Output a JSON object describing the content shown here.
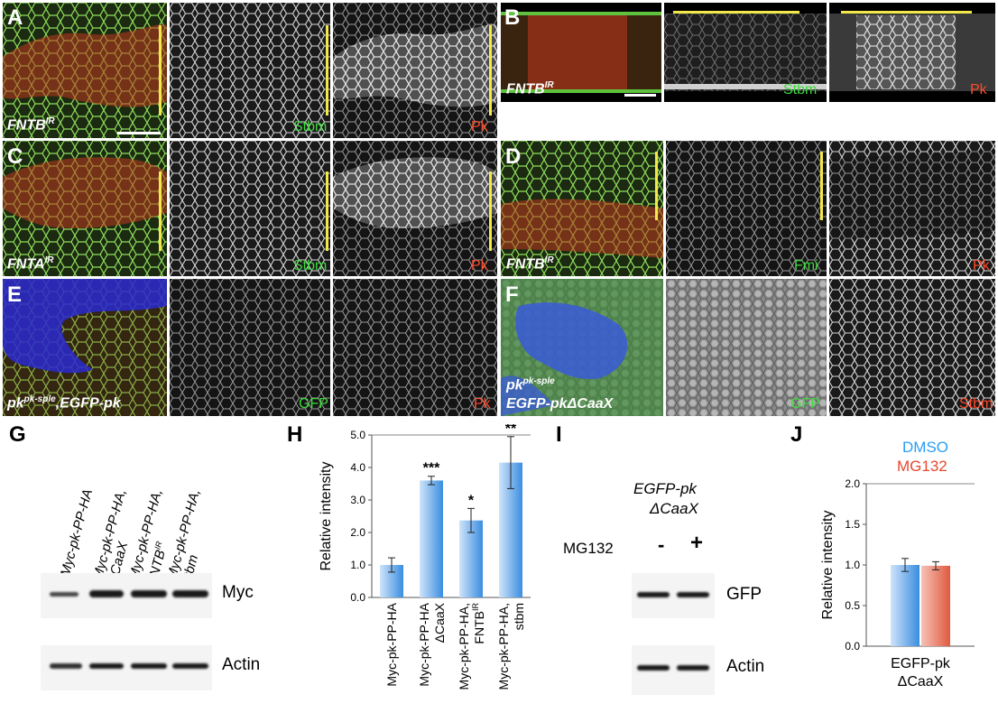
{
  "colors": {
    "green_channel": "#3ddc3d",
    "red_channel": "#ff4a2a",
    "scale_bar": "#f2e84a",
    "dmso": "#2a9df4",
    "mg132": "#e8472d"
  },
  "panels": {
    "A": {
      "label": "A",
      "genotype": "FNTB",
      "sup": "IR",
      "ch1": "Stbm",
      "ch2": "Pk"
    },
    "B": {
      "label": "B",
      "genotype": "FNTB",
      "sup": "IR",
      "ch1": "Stbm",
      "ch2": "Pk"
    },
    "C": {
      "label": "C",
      "genotype": "FNTA",
      "sup": "IR",
      "ch1": "Stbm",
      "ch2": "Pk"
    },
    "D": {
      "label": "D",
      "genotype": "FNTB",
      "sup": "IR",
      "ch1": "Fmi",
      "ch2": "Pk"
    },
    "E": {
      "label": "E",
      "genotype_pre": "pk",
      "sup": "pk-sple",
      "genotype_post": ",EGFP-pk",
      "ch1": "GFP",
      "ch2": "Pk"
    },
    "F": {
      "label": "F",
      "genotype_pre": "pk",
      "sup": "pk-sple",
      "line2": "EGFP-pkΔCaaX",
      "ch1": "GFP",
      "ch2": "Stbm"
    },
    "G": {
      "label": "G",
      "lanes": [
        "Myc-pk-PP-HA",
        "Myc-pk-PP-HA,\nΔCaaX",
        "Myc-pk-PP-HA,\nFNTB",
        "Myc-pk-PP-HA,\nstbm"
      ],
      "lane3_sup": "IR",
      "blot1": "Myc",
      "blot2": "Actin"
    },
    "H": {
      "label": "H"
    },
    "I": {
      "label": "I",
      "title_line1": "EGFP-pk",
      "title_line2": "ΔCaaX",
      "treatment": "MG132",
      "minus": "-",
      "plus": "+",
      "blot1": "GFP",
      "blot2": "Actin"
    },
    "J": {
      "label": "J",
      "legend": [
        "DMSO",
        "MG132"
      ]
    }
  },
  "chart_data": [
    {
      "type": "bar",
      "panel": "H",
      "ylabel": "Relative intensity",
      "ylim": [
        0,
        5
      ],
      "yticks": [
        "0.0",
        "1.0",
        "2.0",
        "3.0",
        "4.0",
        "5.0"
      ],
      "categories": [
        "Myc-pk-PP-HA",
        "Myc-pk-PP-HA\nΔCaaX",
        "Myc-pk-PP-HA,\nFNTB",
        "Myc-pk-PP-HA,\nstbm"
      ],
      "category_sup": [
        "",
        "",
        "IR",
        ""
      ],
      "values": [
        1.0,
        3.6,
        2.37,
        4.15
      ],
      "errors": [
        0.22,
        0.13,
        0.37,
        0.8
      ],
      "significance": [
        "",
        "***",
        "*",
        "**"
      ]
    },
    {
      "type": "bar",
      "panel": "J",
      "ylabel": "Relative intensity",
      "ylim": [
        0,
        2
      ],
      "yticks": [
        "0.0",
        "0.5",
        "1.0",
        "1.5",
        "2.0"
      ],
      "categories": [
        "EGFP-pk\nΔCaaX"
      ],
      "series": [
        {
          "name": "DMSO",
          "values": [
            1.0
          ],
          "errors": [
            0.08
          ]
        },
        {
          "name": "MG132",
          "values": [
            0.99
          ],
          "errors": [
            0.05
          ]
        }
      ]
    }
  ]
}
